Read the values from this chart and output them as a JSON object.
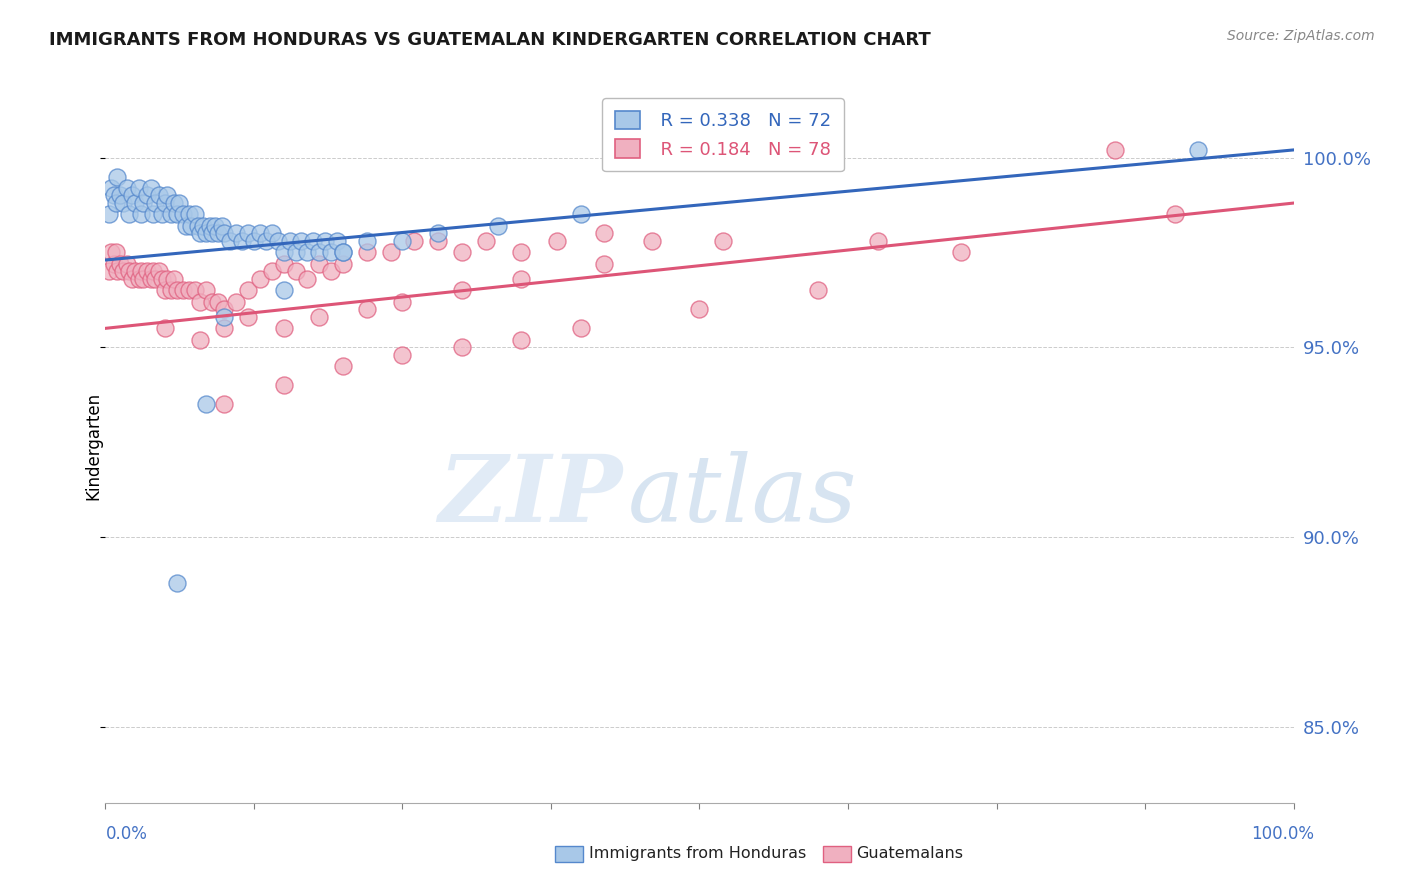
{
  "title": "IMMIGRANTS FROM HONDURAS VS GUATEMALAN KINDERGARTEN CORRELATION CHART",
  "source": "Source: ZipAtlas.com",
  "ylabel": "Kindergarten",
  "legend_blue_r": "R = 0.338",
  "legend_blue_n": "N = 72",
  "legend_pink_r": "R = 0.184",
  "legend_pink_n": "N = 78",
  "blue_color": "#A8C8E8",
  "pink_color": "#F0B0C0",
  "blue_edge_color": "#5588CC",
  "pink_edge_color": "#E06080",
  "blue_line_color": "#3366BB",
  "pink_line_color": "#DD5577",
  "watermark_zip": "ZIP",
  "watermark_atlas": "atlas",
  "x_range": [
    0.0,
    100.0
  ],
  "y_range": [
    83.0,
    101.8
  ],
  "y_ticks": [
    85.0,
    90.0,
    95.0,
    100.0
  ],
  "blue_trend_x0": 0.0,
  "blue_trend_y0": 97.3,
  "blue_trend_x1": 100.0,
  "blue_trend_y1": 100.2,
  "pink_trend_x0": 0.0,
  "pink_trend_y0": 95.5,
  "pink_trend_x1": 100.0,
  "pink_trend_y1": 98.8,
  "blue_scatter_x": [
    0.3,
    0.5,
    0.7,
    0.9,
    1.0,
    1.2,
    1.5,
    1.8,
    2.0,
    2.2,
    2.5,
    2.8,
    3.0,
    3.2,
    3.5,
    3.8,
    4.0,
    4.2,
    4.5,
    4.8,
    5.0,
    5.2,
    5.5,
    5.8,
    6.0,
    6.2,
    6.5,
    6.8,
    7.0,
    7.2,
    7.5,
    7.8,
    8.0,
    8.2,
    8.5,
    8.8,
    9.0,
    9.2,
    9.5,
    9.8,
    10.0,
    10.5,
    11.0,
    11.5,
    12.0,
    12.5,
    13.0,
    13.5,
    14.0,
    14.5,
    15.0,
    15.5,
    16.0,
    16.5,
    17.0,
    17.5,
    18.0,
    18.5,
    19.0,
    19.5,
    20.0,
    22.0,
    10.0,
    15.0,
    20.0,
    25.0,
    28.0,
    33.0,
    40.0,
    92.0,
    6.0,
    8.5
  ],
  "blue_scatter_y": [
    98.5,
    99.2,
    99.0,
    98.8,
    99.5,
    99.0,
    98.8,
    99.2,
    98.5,
    99.0,
    98.8,
    99.2,
    98.5,
    98.8,
    99.0,
    99.2,
    98.5,
    98.8,
    99.0,
    98.5,
    98.8,
    99.0,
    98.5,
    98.8,
    98.5,
    98.8,
    98.5,
    98.2,
    98.5,
    98.2,
    98.5,
    98.2,
    98.0,
    98.2,
    98.0,
    98.2,
    98.0,
    98.2,
    98.0,
    98.2,
    98.0,
    97.8,
    98.0,
    97.8,
    98.0,
    97.8,
    98.0,
    97.8,
    98.0,
    97.8,
    97.5,
    97.8,
    97.5,
    97.8,
    97.5,
    97.8,
    97.5,
    97.8,
    97.5,
    97.8,
    97.5,
    97.8,
    95.8,
    96.5,
    97.5,
    97.8,
    98.0,
    98.2,
    98.5,
    100.2,
    88.8,
    93.5
  ],
  "pink_scatter_x": [
    0.3,
    0.5,
    0.7,
    0.9,
    1.0,
    1.2,
    1.5,
    1.8,
    2.0,
    2.2,
    2.5,
    2.8,
    3.0,
    3.2,
    3.5,
    3.8,
    4.0,
    4.2,
    4.5,
    4.8,
    5.0,
    5.2,
    5.5,
    5.8,
    6.0,
    6.5,
    7.0,
    7.5,
    8.0,
    8.5,
    9.0,
    9.5,
    10.0,
    11.0,
    12.0,
    13.0,
    14.0,
    15.0,
    16.0,
    17.0,
    18.0,
    19.0,
    20.0,
    22.0,
    24.0,
    26.0,
    28.0,
    30.0,
    32.0,
    35.0,
    38.0,
    42.0,
    46.0,
    52.0,
    65.0,
    90.0,
    5.0,
    8.0,
    10.0,
    12.0,
    15.0,
    18.0,
    22.0,
    25.0,
    30.0,
    35.0,
    42.0,
    10.0,
    15.0,
    20.0,
    25.0,
    30.0,
    35.0,
    40.0,
    50.0,
    60.0,
    72.0,
    85.0
  ],
  "pink_scatter_y": [
    97.0,
    97.5,
    97.2,
    97.5,
    97.0,
    97.2,
    97.0,
    97.2,
    97.0,
    96.8,
    97.0,
    96.8,
    97.0,
    96.8,
    97.0,
    96.8,
    97.0,
    96.8,
    97.0,
    96.8,
    96.5,
    96.8,
    96.5,
    96.8,
    96.5,
    96.5,
    96.5,
    96.5,
    96.2,
    96.5,
    96.2,
    96.2,
    96.0,
    96.2,
    96.5,
    96.8,
    97.0,
    97.2,
    97.0,
    96.8,
    97.2,
    97.0,
    97.2,
    97.5,
    97.5,
    97.8,
    97.8,
    97.5,
    97.8,
    97.5,
    97.8,
    98.0,
    97.8,
    97.8,
    97.8,
    98.5,
    95.5,
    95.2,
    95.5,
    95.8,
    95.5,
    95.8,
    96.0,
    96.2,
    96.5,
    96.8,
    97.2,
    93.5,
    94.0,
    94.5,
    94.8,
    95.0,
    95.2,
    95.5,
    96.0,
    96.5,
    97.5,
    100.2
  ]
}
